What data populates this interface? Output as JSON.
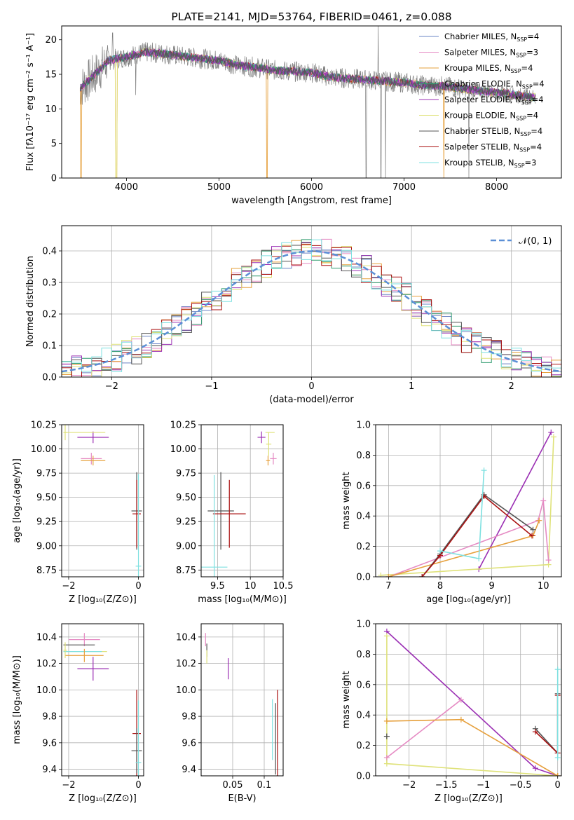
{
  "colors": [
    "#6a84c4",
    "#e58ac3",
    "#e6a03c",
    "#2e9b6e",
    "#9b30b4",
    "#dfe27a",
    "#555555",
    "#aa1111",
    "#7ee0e0"
  ],
  "chart_data": [
    {
      "id": "spectrum",
      "type": "line",
      "title": "PLATE=2141, MJD=53764, FIBERID=0461, z=0.088",
      "xlabel": "wavelength [Angstrom, rest frame]",
      "ylabel": "Flux [fλ10⁻¹⁷ erg cm⁻² s⁻¹ A⁻¹]",
      "xlim": [
        3300,
        8700
      ],
      "ylim": [
        0,
        22
      ],
      "xticks": [
        4000,
        5000,
        6000,
        7000,
        8000
      ],
      "yticks": [
        0,
        5,
        10,
        15,
        20
      ],
      "legend_position": "top-right",
      "series": [
        {
          "name": "Chabrier MILES, N_SSP=4"
        },
        {
          "name": "Salpeter MILES, N_SSP=3"
        },
        {
          "name": "Kroupa MILES, N_SSP=4"
        },
        {
          "name": "Chabrier ELODIE, N_SSP=4"
        },
        {
          "name": "Salpeter ELODIE, N_SSP=4"
        },
        {
          "name": "Kroupa ELODIE, N_SSP=4"
        },
        {
          "name": "Chabrier STELIB, N_SSP=4"
        },
        {
          "name": "Salpeter STELIB, N_SSP=4"
        },
        {
          "name": "Kroupa STELIB, N_SSP=3"
        }
      ],
      "continuum": [
        [
          3500,
          13
        ],
        [
          3700,
          15.5
        ],
        [
          3800,
          17
        ],
        [
          4000,
          17.5
        ],
        [
          4200,
          18.2
        ],
        [
          4400,
          18
        ],
        [
          4600,
          17.6
        ],
        [
          4800,
          17.3
        ],
        [
          5000,
          17
        ],
        [
          5200,
          16.3
        ],
        [
          5400,
          16
        ],
        [
          5600,
          15.6
        ],
        [
          5800,
          15.4
        ],
        [
          6000,
          15.3
        ],
        [
          6200,
          14.6
        ],
        [
          6400,
          14.4
        ],
        [
          6600,
          14.2
        ],
        [
          6800,
          14
        ],
        [
          7000,
          13.8
        ],
        [
          7200,
          13.4
        ],
        [
          7400,
          13.3
        ],
        [
          7600,
          13
        ],
        [
          7800,
          12.6
        ],
        [
          8000,
          12.4
        ],
        [
          8200,
          12
        ],
        [
          8400,
          11.7
        ]
      ],
      "drops": [
        [
          3510,
          0
        ],
        [
          3895,
          0
        ],
        [
          5520,
          0
        ],
        [
          7430,
          0
        ]
      ],
      "data_spikes": [
        [
          3780,
          18
        ],
        [
          3850,
          21
        ],
        [
          6590,
          0
        ],
        [
          6720,
          22
        ],
        [
          6750,
          0
        ],
        [
          6800,
          0
        ],
        [
          7700,
          0
        ]
      ]
    },
    {
      "id": "residuals",
      "type": "line",
      "title": "",
      "xlabel": "(data-model)/error",
      "ylabel": "Normed distribution",
      "xlim": [
        -2.5,
        2.5
      ],
      "ylim": [
        0,
        0.48
      ],
      "xticks": [
        -2,
        -1,
        0,
        1,
        2
      ],
      "yticks": [
        0.0,
        0.1,
        0.2,
        0.3,
        0.4
      ],
      "grid": true,
      "legend": [
        {
          "name": "𝒩(0, 1)",
          "color": "#5b8fd6"
        }
      ],
      "legend_position": "top-right",
      "hist_bins": [
        -2.5,
        -2.4,
        -2.3,
        -2.2,
        -2.1,
        -2.0,
        -1.9,
        -1.8,
        -1.7,
        -1.6,
        -1.5,
        -1.4,
        -1.3,
        -1.2,
        -1.1,
        -1.0,
        -0.9,
        -0.8,
        -0.7,
        -0.6,
        -0.5,
        -0.4,
        -0.3,
        -0.2,
        -0.1,
        0.0,
        0.1,
        0.2,
        0.3,
        0.4,
        0.5,
        0.6,
        0.7,
        0.8,
        0.9,
        1.0,
        1.1,
        1.2,
        1.3,
        1.4,
        1.5,
        1.6,
        1.7,
        1.8,
        1.9,
        2.0,
        2.1,
        2.2,
        2.3,
        2.4,
        2.5
      ]
    },
    {
      "id": "age-vs-Z",
      "type": "scatter",
      "xlabel": "Z [log₁₀(Z/Z⊙)]",
      "ylabel": "age  [log₁₀(age/yr)]",
      "xlim": [
        -2.2,
        0.15
      ],
      "ylim": [
        8.68,
        10.25
      ],
      "xticks": [
        -2,
        0
      ],
      "yticks": [
        8.75,
        9.0,
        9.25,
        9.5,
        9.75,
        10.0,
        10.25
      ],
      "points": [
        {
          "x": -1.3,
          "y": 10.12,
          "xerr": 0.45,
          "yerr": 0.06,
          "c": 4
        },
        {
          "x": -1.55,
          "y": 10.17,
          "xerr": 0.6,
          "yerr": 0.0,
          "c": 5
        },
        {
          "x": -2.1,
          "y": 10.17,
          "xerr": 0.05,
          "yerr": 0.08,
          "c": 5
        },
        {
          "x": -1.35,
          "y": 9.9,
          "xerr": 0.3,
          "yerr": 0.06,
          "c": 1
        },
        {
          "x": -1.3,
          "y": 9.88,
          "xerr": 0.35,
          "yerr": 0.05,
          "c": 2
        },
        {
          "x": -0.05,
          "y": 9.36,
          "xerr": 0.15,
          "yerr": 0.4,
          "c": 6
        },
        {
          "x": -0.05,
          "y": 9.33,
          "xerr": 0.12,
          "yerr": 0.35,
          "c": 7
        },
        {
          "x": 0.0,
          "y": 8.79,
          "xerr": 0.08,
          "yerr": 0.95,
          "c": 8
        }
      ]
    },
    {
      "id": "age-vs-mass",
      "type": "scatter",
      "xlabel": "mass [log₁₀(M/M⊙)]",
      "ylabel": "",
      "xlim": [
        9.25,
        10.5
      ],
      "ylim": [
        8.68,
        10.25
      ],
      "xticks": [
        9.5,
        10.0,
        10.5
      ],
      "yticks": [
        8.75,
        9.0,
        9.25,
        9.5,
        9.75,
        10.0,
        10.25
      ],
      "points": [
        {
          "x": 10.17,
          "y": 10.12,
          "xerr": 0.06,
          "yerr": 0.06,
          "c": 4
        },
        {
          "x": 10.3,
          "y": 10.17,
          "xerr": 0.07,
          "yerr": 0.0,
          "c": 5
        },
        {
          "x": 10.28,
          "y": 10.05,
          "xerr": 0.04,
          "yerr": 0.12,
          "c": 5
        },
        {
          "x": 10.35,
          "y": 9.9,
          "xerr": 0.05,
          "yerr": 0.06,
          "c": 1
        },
        {
          "x": 10.27,
          "y": 9.88,
          "xerr": 0.03,
          "yerr": 0.05,
          "c": 2
        },
        {
          "x": 9.55,
          "y": 9.36,
          "xerr": 0.2,
          "yerr": 0.4,
          "c": 6
        },
        {
          "x": 9.68,
          "y": 9.33,
          "xerr": 0.25,
          "yerr": 0.35,
          "c": 7
        },
        {
          "x": 9.45,
          "y": 8.78,
          "xerr": 0.2,
          "yerr": 0.95,
          "c": 8
        }
      ]
    },
    {
      "id": "massweight-vs-age",
      "type": "line",
      "xlabel": "age  [log₁₀(age/yr)]",
      "ylabel": "mass weight",
      "xlim": [
        6.75,
        10.35
      ],
      "ylim": [
        0,
        1
      ],
      "xticks": [
        7,
        8,
        9,
        10
      ],
      "yticks": [
        0.0,
        0.2,
        0.4,
        0.6,
        0.8,
        1.0
      ],
      "grid": true,
      "lines": [
        {
          "c": 4,
          "pts": [
            [
              8.75,
              0.05
            ],
            [
              10.15,
              0.95
            ]
          ]
        },
        {
          "c": 5,
          "pts": [
            [
              6.85,
              0.01
            ],
            [
              10.1,
              0.08
            ],
            [
              10.2,
              0.92
            ]
          ]
        },
        {
          "c": 1,
          "pts": [
            [
              7.0,
              0.0
            ],
            [
              9.9,
              0.37
            ],
            [
              10.0,
              0.5
            ],
            [
              10.1,
              0.11
            ]
          ]
        },
        {
          "c": 2,
          "pts": [
            [
              7.0,
              0.0
            ],
            [
              9.8,
              0.27
            ],
            [
              9.92,
              0.37
            ]
          ]
        },
        {
          "c": 6,
          "pts": [
            [
              7.65,
              0.0
            ],
            [
              8.0,
              0.15
            ],
            [
              8.85,
              0.54
            ],
            [
              9.8,
              0.31
            ]
          ]
        },
        {
          "c": 7,
          "pts": [
            [
              7.65,
              0.0
            ],
            [
              8.0,
              0.14
            ],
            [
              8.85,
              0.53
            ],
            [
              9.78,
              0.27
            ]
          ]
        },
        {
          "c": 8,
          "pts": [
            [
              8.0,
              0.17
            ],
            [
              8.75,
              0.12
            ],
            [
              8.85,
              0.7
            ]
          ]
        }
      ]
    },
    {
      "id": "mass-vs-Z",
      "type": "scatter",
      "xlabel": "Z [log₁₀(Z/Z⊙)]",
      "ylabel": "mass [log₁₀(M/M⊙)]",
      "xlim": [
        -2.2,
        0.15
      ],
      "ylim": [
        9.35,
        10.5
      ],
      "xticks": [
        -2,
        0
      ],
      "yticks": [
        9.4,
        9.6,
        9.8,
        10.0,
        10.2,
        10.4
      ],
      "points": [
        {
          "x": -1.55,
          "y": 10.38,
          "xerr": 0.45,
          "yerr": 0.05,
          "c": 1
        },
        {
          "x": -1.7,
          "y": 10.34,
          "xerr": 0.45,
          "yerr": 0.0,
          "c": 6
        },
        {
          "x": -1.5,
          "y": 10.29,
          "xerr": 0.6,
          "yerr": 0.0,
          "c": 5
        },
        {
          "x": -1.6,
          "y": 10.29,
          "xerr": 0.55,
          "yerr": 0.0,
          "c": 8
        },
        {
          "x": -1.55,
          "y": 10.26,
          "xerr": 0.55,
          "yerr": 0.05,
          "c": 2
        },
        {
          "x": -2.1,
          "y": 10.3,
          "xerr": 0.05,
          "yerr": 0.06,
          "c": 5
        },
        {
          "x": -1.3,
          "y": 10.16,
          "xerr": 0.45,
          "yerr": 0.09,
          "c": 4
        },
        {
          "x": -0.05,
          "y": 9.67,
          "xerr": 0.12,
          "yerr": 0.33,
          "c": 7
        },
        {
          "x": -0.05,
          "y": 9.54,
          "xerr": 0.15,
          "yerr": 0.17,
          "c": 6
        },
        {
          "x": 0.0,
          "y": 9.45,
          "xerr": 0.08,
          "yerr": 0.47,
          "c": 8
        }
      ]
    },
    {
      "id": "mass-vs-EBV",
      "type": "scatter",
      "xlabel": "E(B-V)",
      "ylabel": "",
      "xlim": [
        0.0,
        0.13
      ],
      "ylim": [
        9.35,
        10.5
      ],
      "xticks": [
        0.05,
        0.1
      ],
      "yticks": [
        9.4,
        9.6,
        9.8,
        10.0,
        10.2,
        10.4
      ],
      "points": [
        {
          "x": 0.007,
          "y": 10.38,
          "xerr": 0.0,
          "yerr": 0.05,
          "c": 1
        },
        {
          "x": 0.009,
          "y": 10.3,
          "xerr": 0.0,
          "yerr": 0.05,
          "c": 6
        },
        {
          "x": 0.009,
          "y": 10.25,
          "xerr": 0.0,
          "yerr": 0.05,
          "c": 5
        },
        {
          "x": 0.043,
          "y": 10.16,
          "xerr": 0.0,
          "yerr": 0.08,
          "c": 4
        },
        {
          "x": 0.113,
          "y": 9.7,
          "xerr": 0.0,
          "yerr": 0.23,
          "c": 8
        },
        {
          "x": 0.118,
          "y": 9.63,
          "xerr": 0.0,
          "yerr": 0.27,
          "c": 6
        },
        {
          "x": 0.121,
          "y": 9.67,
          "xerr": 0.0,
          "yerr": 0.33,
          "c": 7
        }
      ]
    },
    {
      "id": "massweight-vs-Z",
      "type": "line",
      "xlabel": "Z [log₁₀(Z/Z⊙)]",
      "ylabel": "mass weight",
      "xlim": [
        -2.45,
        0.05
      ],
      "ylim": [
        0,
        1
      ],
      "xticks": [
        -2.0,
        -1.5,
        -1.0,
        -0.5,
        0.0
      ],
      "yticks": [
        0.0,
        0.2,
        0.4,
        0.6,
        0.8,
        1.0
      ],
      "grid": true,
      "lines": [
        {
          "c": 4,
          "pts": [
            [
              -2.3,
              0.95
            ],
            [
              -0.3,
              0.05
            ],
            [
              0.0,
              0.0
            ]
          ]
        },
        {
          "c": 5,
          "pts": [
            [
              -2.3,
              0.92
            ],
            [
              -2.3,
              0.08
            ],
            [
              0.0,
              0.0
            ]
          ]
        },
        {
          "c": 1,
          "pts": [
            [
              -2.3,
              0.12
            ],
            [
              -1.3,
              0.5
            ]
          ]
        },
        {
          "c": 2,
          "pts": [
            [
              -2.3,
              0.36
            ],
            [
              -1.3,
              0.37
            ],
            [
              0.0,
              0.0
            ]
          ]
        },
        {
          "c": 6,
          "pts": [
            [
              -2.3,
              0.26
            ],
            [
              -2.3,
              0.26
            ]
          ]
        },
        {
          "c": 6,
          "pts": [
            [
              -0.3,
              0.31
            ],
            [
              0.0,
              0.15
            ],
            [
              0.0,
              0.54
            ]
          ]
        },
        {
          "c": 7,
          "pts": [
            [
              -0.3,
              0.29
            ],
            [
              0.0,
              0.15
            ],
            [
              0.0,
              0.53
            ]
          ]
        },
        {
          "c": 8,
          "pts": [
            [
              0.0,
              0.12
            ],
            [
              0.0,
              0.7
            ]
          ]
        }
      ]
    }
  ]
}
